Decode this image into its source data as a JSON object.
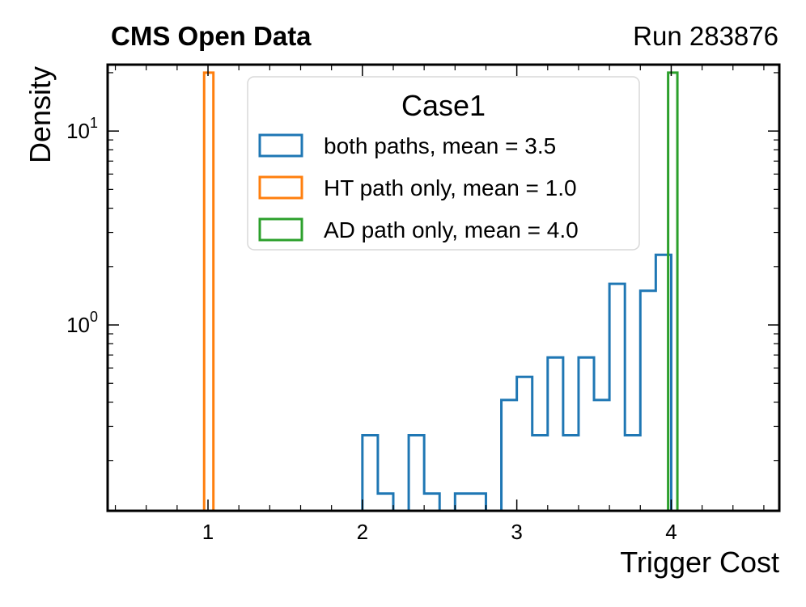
{
  "header": {
    "left": "CMS Open Data",
    "right": "Run 283876"
  },
  "chart_data": {
    "type": "histogram",
    "xlabel": "Trigger Cost",
    "ylabel": "Density",
    "xlim": [
      0.35,
      4.7
    ],
    "ylim": [
      0.11,
      22
    ],
    "yscale": "log",
    "x_ticks": [
      {
        "value": 1,
        "label": "1"
      },
      {
        "value": 2,
        "label": "2"
      },
      {
        "value": 3,
        "label": "3"
      },
      {
        "value": 4,
        "label": "4"
      }
    ],
    "y_ticks": [
      {
        "value": 1,
        "base": "10",
        "exp": "0"
      },
      {
        "value": 10,
        "base": "10",
        "exp": "1"
      }
    ],
    "legend": {
      "title": "Case1",
      "position": "top-center"
    },
    "series": [
      {
        "name": "both paths, mean = 3.5",
        "color": "#1f77b4",
        "bin_edges": [
          2.0,
          2.1,
          2.2,
          2.3,
          2.4,
          2.5,
          2.6,
          2.7,
          2.8,
          2.9,
          3.0,
          3.1,
          3.2,
          3.3,
          3.4,
          3.5,
          3.6,
          3.7,
          3.8,
          3.9,
          4.0
        ],
        "values": [
          0.27,
          0.135,
          0,
          0.27,
          0.135,
          0,
          0.135,
          0.135,
          0,
          0.41,
          0.54,
          0.27,
          0.68,
          0.27,
          0.68,
          0.41,
          1.63,
          0.27,
          1.5,
          2.3
        ]
      },
      {
        "name": "HT path only, mean = 1.0",
        "color": "#ff7f0e",
        "bin_edges": [
          0.975,
          1.035
        ],
        "values": [
          20
        ]
      },
      {
        "name": "AD path only, mean = 4.0",
        "color": "#2ca02c",
        "bin_edges": [
          3.98,
          4.04
        ],
        "values": [
          20
        ]
      }
    ]
  }
}
